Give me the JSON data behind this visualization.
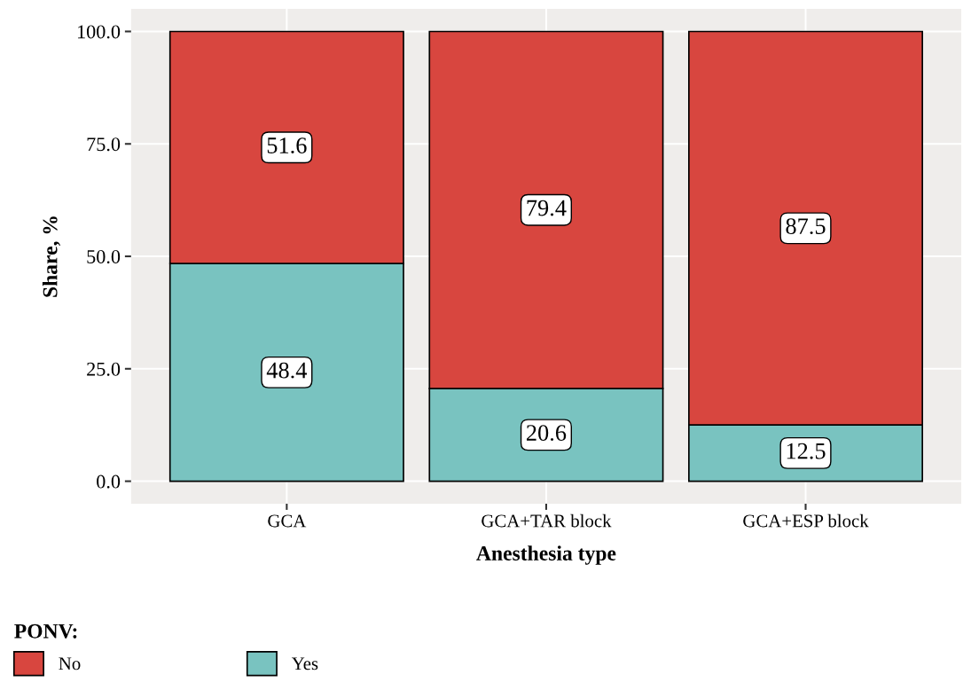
{
  "chart_data": {
    "type": "bar",
    "stacked": true,
    "xlabel": "Anesthesia type",
    "ylabel": "Share, %",
    "categories": [
      "GCA",
      "GCA+TAR block",
      "GCA+ESP block"
    ],
    "series": [
      {
        "name": "Yes",
        "color": "#79c3c0",
        "values": [
          48.4,
          20.6,
          12.5
        ]
      },
      {
        "name": "No",
        "color": "#d8463f",
        "values": [
          51.6,
          79.4,
          87.5
        ]
      }
    ],
    "ylim": [
      -5,
      105
    ],
    "yticks": [
      {
        "value": 0,
        "label": "0.0"
      },
      {
        "value": 25,
        "label": "25.0"
      },
      {
        "value": 50,
        "label": "50.0"
      },
      {
        "value": 75,
        "label": "75.0"
      },
      {
        "value": 100,
        "label": "100.0"
      }
    ],
    "grid": true,
    "data_labels": true,
    "legend": "bottom left",
    "legend_title": "PONV:"
  }
}
